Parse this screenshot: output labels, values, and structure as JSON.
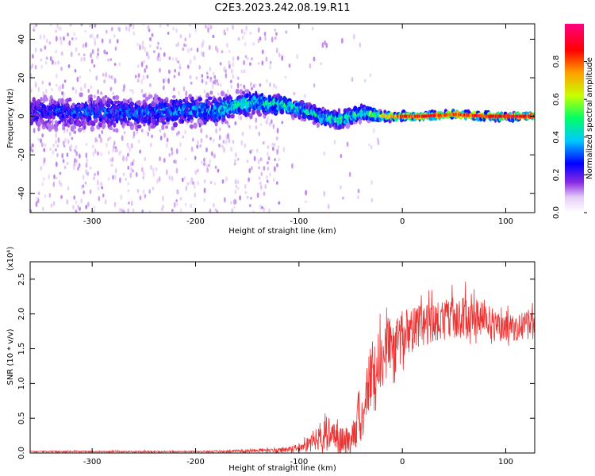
{
  "title": "C2E3.2023.242.08.19.R11",
  "chart_data": [
    {
      "type": "heatmap",
      "xlabel": "Height of straight line (km)",
      "ylabel": "Frequency (Hz)",
      "xlim": [
        -360,
        128
      ],
      "ylim": [
        -50,
        48
      ],
      "x_ticks": [
        -300,
        -200,
        -100,
        0,
        100
      ],
      "x_tick_labels": [
        "-300",
        "-200",
        "-100",
        "0",
        "100"
      ],
      "y_ticks": [
        -40,
        -20,
        0,
        20,
        40
      ],
      "y_tick_labels": [
        "-40",
        "-20",
        "0",
        "20",
        "40"
      ],
      "ridge": {
        "x": [
          -360,
          -300,
          -250,
          -200,
          -180,
          -160,
          -140,
          -120,
          -100,
          -80,
          -60,
          -40,
          -20,
          0,
          20,
          50,
          80,
          128
        ],
        "center_hz": [
          2,
          2,
          2,
          3,
          3,
          6,
          7,
          6,
          4,
          0,
          -2,
          2,
          0,
          0,
          0,
          1,
          0,
          0
        ],
        "spread_hz": [
          10,
          10,
          10,
          9,
          8,
          7,
          7,
          6,
          5,
          5,
          5,
          4,
          3,
          2,
          2,
          2,
          2,
          2
        ],
        "peak_amplitude": [
          0.3,
          0.35,
          0.35,
          0.4,
          0.45,
          0.5,
          0.5,
          0.55,
          0.5,
          0.5,
          0.55,
          0.6,
          0.7,
          0.85,
          0.9,
          0.85,
          0.9,
          0.9
        ]
      },
      "colorbar": {
        "label": "Normalized spectral amplitude",
        "range": [
          0.0,
          1.0
        ],
        "ticks": [
          0.0,
          0.2,
          0.4,
          0.6,
          0.8
        ],
        "tick_labels": [
          "0.0",
          "0.2",
          "0.4",
          "0.6",
          "0.8"
        ],
        "colors": [
          "#ffffff",
          "#d9b8f5",
          "#8a2be2",
          "#0000ff",
          "#00c8ff",
          "#00ff66",
          "#c8ff00",
          "#ffa000",
          "#ff0000",
          "#ff0080"
        ]
      }
    },
    {
      "type": "line",
      "xlabel": "Height of straight line (km)",
      "ylabel": "SNR (10 * v/v)",
      "scale_label": "(x10⁴)",
      "xlim": [
        -360,
        128
      ],
      "ylim": [
        0,
        2.75
      ],
      "x_ticks": [
        -300,
        -200,
        -100,
        0,
        100
      ],
      "x_tick_labels": [
        "-300",
        "-200",
        "-100",
        "0",
        "100"
      ],
      "y_ticks": [
        0.0,
        0.5,
        1.0,
        1.5,
        2.0,
        2.5
      ],
      "y_tick_labels": [
        "0.0",
        "0.5",
        "1.0",
        "1.5",
        "2.0",
        "2.5"
      ],
      "color": "#ee3333",
      "series": [
        {
          "x": [
            -360,
            -300,
            -250,
            -200,
            -150,
            -130,
            -110,
            -100,
            -90,
            -80,
            -70,
            -60,
            -50,
            -40,
            -30,
            -20,
            -10,
            0,
            10,
            20,
            30,
            40,
            50,
            60,
            70,
            80,
            90,
            100,
            110,
            128
          ],
          "y": [
            0.02,
            0.02,
            0.02,
            0.02,
            0.03,
            0.04,
            0.05,
            0.08,
            0.14,
            0.22,
            0.3,
            0.2,
            0.18,
            0.5,
            1.15,
            1.4,
            1.55,
            1.7,
            1.78,
            1.85,
            1.88,
            1.92,
            1.95,
            1.98,
            2.0,
            1.95,
            1.85,
            1.8,
            1.82,
            1.85
          ],
          "noise": [
            0.01,
            0.01,
            0.01,
            0.01,
            0.02,
            0.03,
            0.04,
            0.06,
            0.1,
            0.18,
            0.22,
            0.18,
            0.2,
            0.4,
            0.45,
            0.45,
            0.4,
            0.35,
            0.33,
            0.32,
            0.3,
            0.3,
            0.3,
            0.32,
            0.3,
            0.25,
            0.2,
            0.2,
            0.2,
            0.22
          ]
        }
      ]
    }
  ]
}
